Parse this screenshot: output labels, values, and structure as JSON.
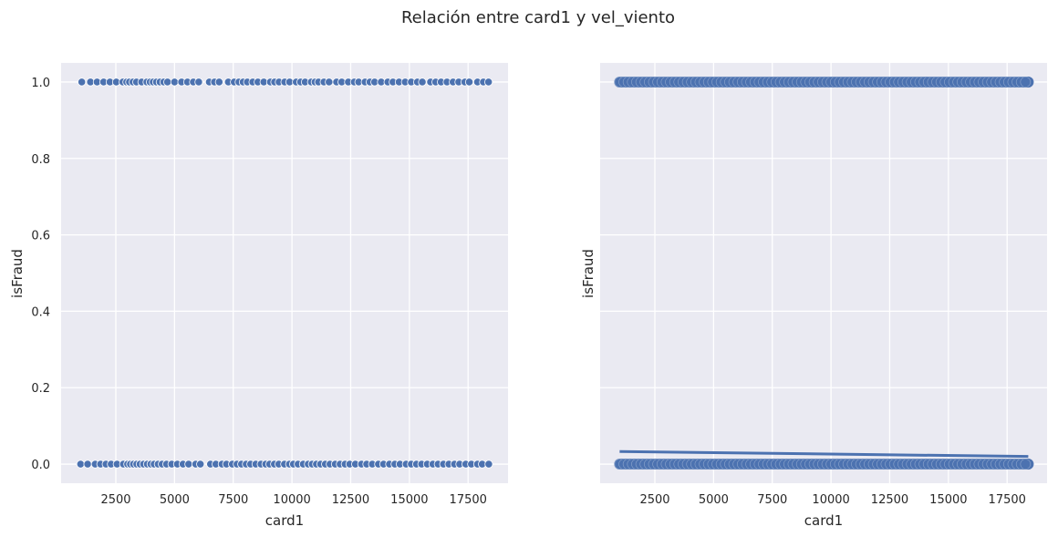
{
  "suptitle": "Relación entre card1 y vel_viento",
  "colors": {
    "panel_bg": "#eaeaf2",
    "grid": "#ffffff",
    "marker": "#4c72b0",
    "marker_edge": "#ffffff",
    "text": "#262626"
  },
  "chart_data": [
    {
      "type": "scatter",
      "xlabel": "card1",
      "ylabel": "isFraud",
      "xlim": [
        170,
        19200
      ],
      "ylim": [
        -0.05,
        1.05
      ],
      "xticks": [
        2500,
        5000,
        7500,
        10000,
        12500,
        15000,
        17500
      ],
      "xticklabels": [
        "2500",
        "5000",
        "7500",
        "10000",
        "12500",
        "15000",
        "17500"
      ],
      "yticks": [
        0.0,
        0.2,
        0.4,
        0.6,
        0.8,
        1.0
      ],
      "yticklabels": [
        "0.0",
        "0.2",
        "0.4",
        "0.6",
        "0.8",
        "1.0"
      ],
      "grid": true,
      "series": [
        {
          "y": 1.0,
          "x": [
            1050,
            1420,
            1700,
            1980,
            2250,
            2520,
            2800,
            2960,
            3080,
            3230,
            3380,
            3600,
            3820,
            3960,
            4090,
            4230,
            4380,
            4540,
            4700,
            5000,
            5300,
            5550,
            5800,
            6030,
            6480,
            6700,
            6900,
            7290,
            7540,
            7740,
            7920,
            8100,
            8330,
            8550,
            8800,
            9080,
            9260,
            9450,
            9690,
            9900,
            10180,
            10370,
            10560,
            10820,
            10980,
            11130,
            11360,
            11580,
            11900,
            12120,
            12400,
            12650,
            12840,
            13110,
            13320,
            13520,
            13800,
            14080,
            14300,
            14560,
            14820,
            15080,
            15340,
            15550,
            15900,
            16120,
            16350,
            16600,
            16860,
            17100,
            17360,
            17550,
            17900,
            18150,
            18370
          ]
        },
        {
          "y": 0.0,
          "x": [
            1000,
            1300,
            1620,
            1850,
            2080,
            2300,
            2550,
            2820,
            3000,
            3120,
            3250,
            3390,
            3530,
            3680,
            3840,
            3990,
            4130,
            4300,
            4470,
            4660,
            4880,
            5120,
            5360,
            5600,
            5900,
            6100,
            6530,
            6760,
            7020,
            7210,
            7460,
            7660,
            7850,
            8050,
            8240,
            8460,
            8680,
            8880,
            9050,
            9250,
            9440,
            9680,
            9890,
            10060,
            10260,
            10480,
            10690,
            10860,
            11040,
            11220,
            11420,
            11620,
            11840,
            12050,
            12260,
            12460,
            12700,
            12960,
            13180,
            13420,
            13680,
            13900,
            14150,
            14380,
            14600,
            14860,
            15080,
            15300,
            15520,
            15760,
            16000,
            16220,
            16450,
            16680,
            16920,
            17140,
            17400,
            17640,
            17900,
            18100,
            18380
          ]
        }
      ]
    },
    {
      "type": "scatter",
      "xlabel": "card1",
      "ylabel": "isFraud",
      "xlim": [
        170,
        19200
      ],
      "ylim": [
        -0.05,
        1.05
      ],
      "xticks": [
        2500,
        5000,
        7500,
        10000,
        12500,
        15000,
        17500
      ],
      "xticklabels": [
        "2500",
        "5000",
        "7500",
        "10000",
        "12500",
        "15000",
        "17500"
      ],
      "yticks": [
        0.0,
        0.2,
        0.4,
        0.6,
        0.8,
        1.0
      ],
      "grid": true,
      "series": [
        {
          "y": 1.0,
          "x": [
            1000,
            18400
          ],
          "dense": true
        },
        {
          "y": 0.0,
          "x": [
            1000,
            18400
          ],
          "dense": true
        }
      ],
      "regression_line": {
        "x": [
          1000,
          18400
        ],
        "y": [
          0.033,
          0.02
        ]
      }
    }
  ]
}
